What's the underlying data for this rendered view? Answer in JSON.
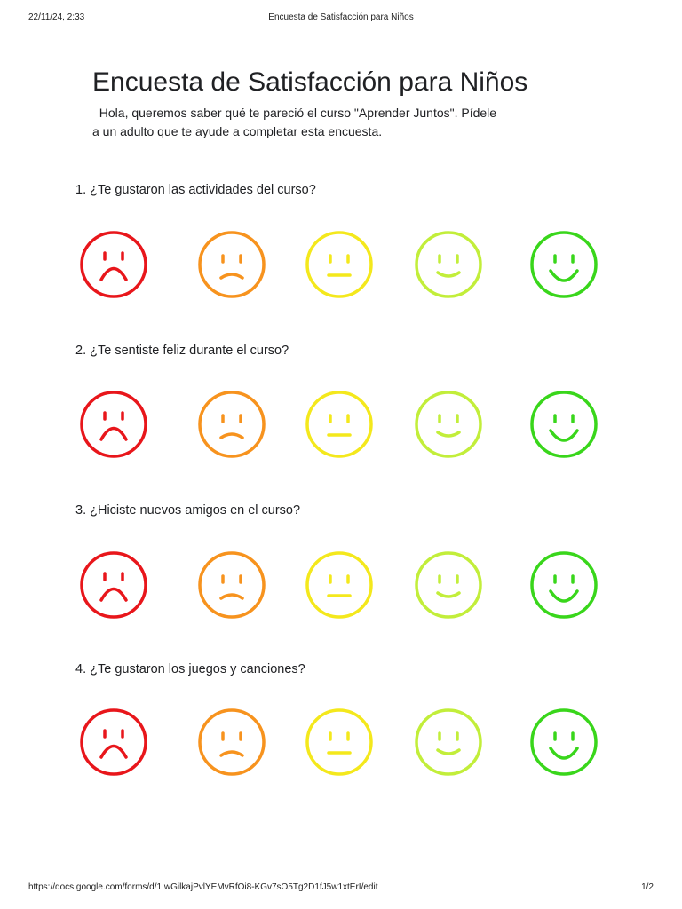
{
  "print_header": {
    "date": "22/11/24, 2:33",
    "title": "Encuesta de Satisfacción para Niños"
  },
  "form": {
    "title": "Encuesta de Satisfacción para Niños",
    "description_lines": [
      "  Hola, queremos saber qué te pareció el curso \"Aprender Juntos\". Pídele",
      "a un adulto que te ayude a completar esta encuesta."
    ]
  },
  "questions": [
    {
      "text": "1. ¿Te gustaron las actividades del curso?"
    },
    {
      "text": "2. ¿Te sentiste feliz durante el curso?"
    },
    {
      "text": "3. ¿Hiciste nuevos amigos en el curso?"
    },
    {
      "text": "4. ¿Te gustaron los juegos y canciones?"
    }
  ],
  "rating_scale": [
    {
      "icon": "very-sad-face-icon",
      "color": "#e8161b"
    },
    {
      "icon": "sad-face-icon",
      "color": "#f7931e"
    },
    {
      "icon": "neutral-face-icon",
      "color": "#f4e81c"
    },
    {
      "icon": "smiling-face-icon",
      "color": "#c2ee3a"
    },
    {
      "icon": "very-happy-face-icon",
      "color": "#39d61b"
    }
  ],
  "print_footer": {
    "url": "https://docs.google.com/forms/d/1IwGilkajPvlYEMvRfOi8-KGv7sO5Tg2D1fJ5w1xtErI/edit",
    "page": "1/2"
  }
}
